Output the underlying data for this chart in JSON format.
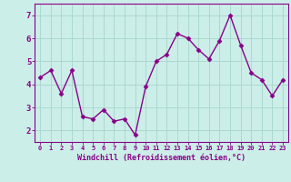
{
  "x": [
    0,
    1,
    2,
    3,
    4,
    5,
    6,
    7,
    8,
    9,
    10,
    11,
    12,
    13,
    14,
    15,
    16,
    17,
    18,
    19,
    20,
    21,
    22,
    23
  ],
  "y": [
    4.3,
    4.6,
    3.6,
    4.6,
    2.6,
    2.5,
    2.9,
    2.4,
    2.5,
    1.8,
    3.9,
    5.0,
    5.3,
    6.2,
    6.0,
    5.5,
    5.1,
    5.9,
    7.0,
    5.7,
    4.5,
    4.2,
    3.5,
    4.2
  ],
  "line_color": "#880088",
  "marker": "D",
  "marker_size": 2.5,
  "bg_color": "#cceee8",
  "grid_color": "#aad8d0",
  "xlabel": "Windchill (Refroidissement éolien,°C)",
  "xlabel_color": "#880088",
  "tick_color": "#880088",
  "ylim": [
    1.5,
    7.5
  ],
  "yticks": [
    2,
    3,
    4,
    5,
    6,
    7
  ],
  "xlim": [
    -0.5,
    23.5
  ],
  "xticks": [
    0,
    1,
    2,
    3,
    4,
    5,
    6,
    7,
    8,
    9,
    10,
    11,
    12,
    13,
    14,
    15,
    16,
    17,
    18,
    19,
    20,
    21,
    22,
    23
  ],
  "xtick_labels": [
    "0",
    "1",
    "2",
    "3",
    "4",
    "5",
    "6",
    "7",
    "8",
    "9",
    "10",
    "11",
    "12",
    "13",
    "14",
    "15",
    "16",
    "17",
    "18",
    "19",
    "20",
    "21",
    "22",
    "23"
  ],
  "line_width": 1.0,
  "spine_color": "#880088"
}
